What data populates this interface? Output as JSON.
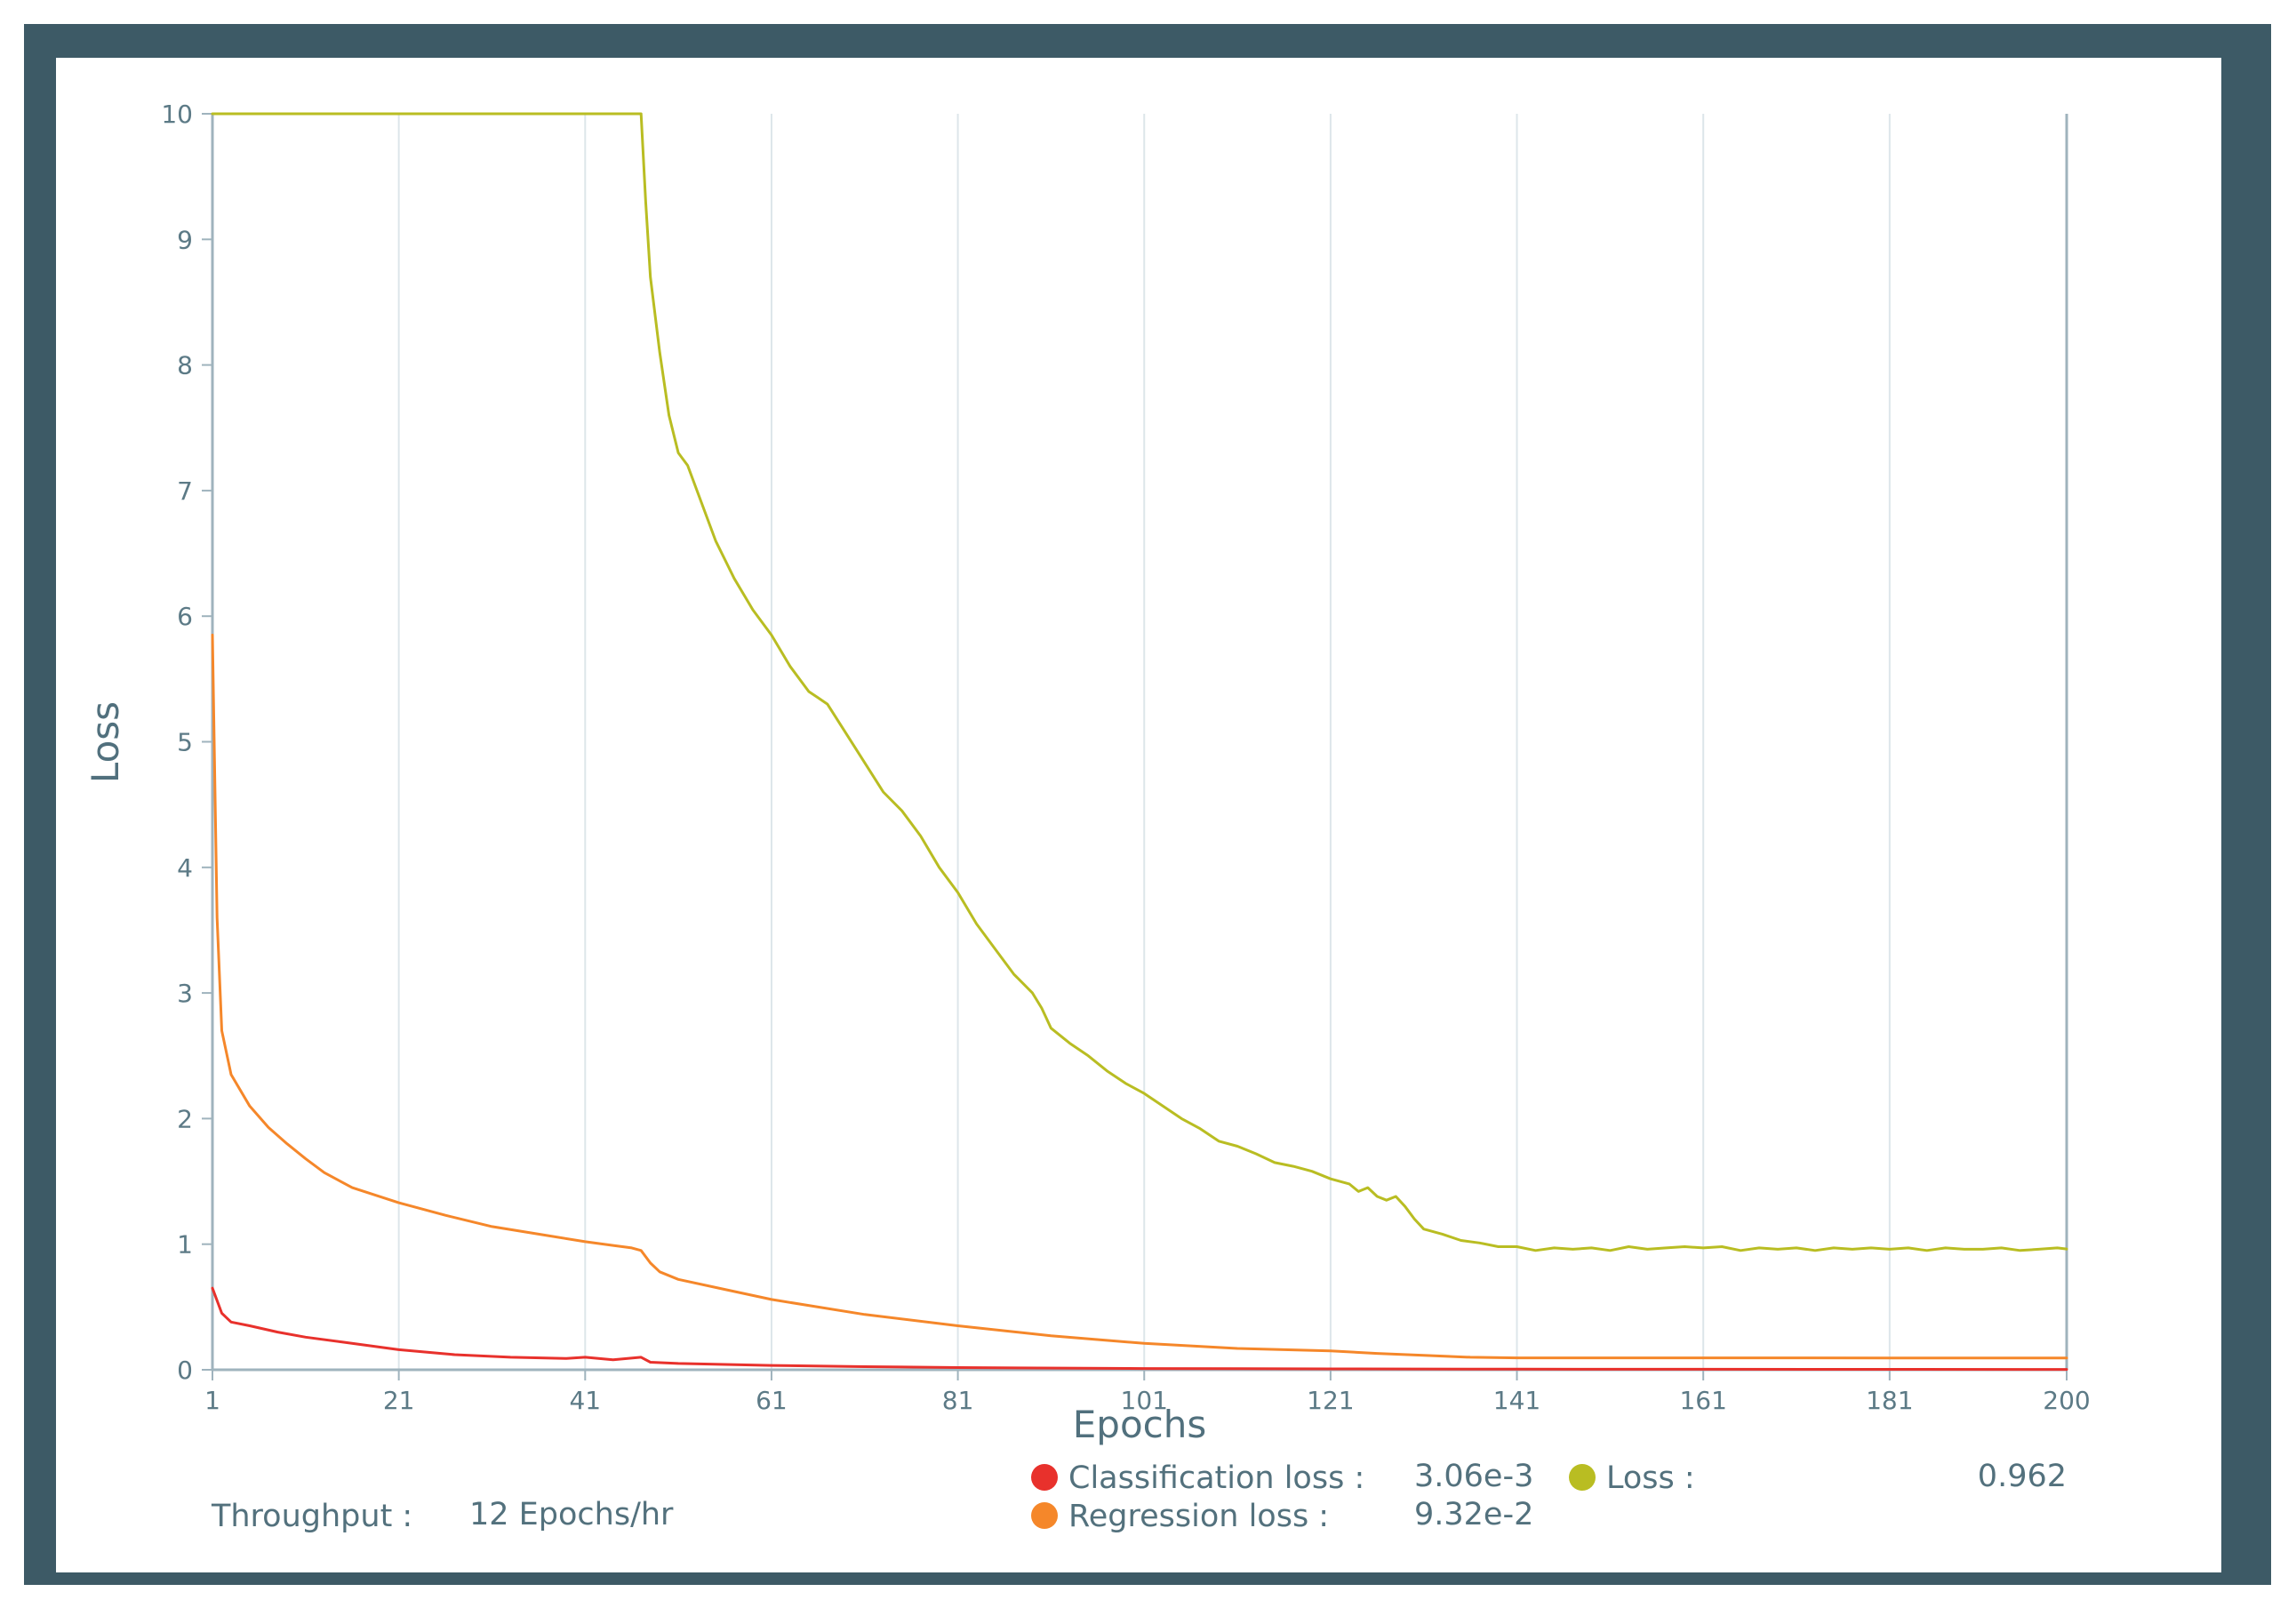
{
  "chart_data": {
    "type": "line",
    "xlabel": "Epochs",
    "ylabel": "Loss",
    "xlim": [
      1,
      200
    ],
    "ylim": [
      0,
      10
    ],
    "x_ticks": [
      "1",
      "21",
      "41",
      "61",
      "81",
      "101",
      "121",
      "141",
      "161",
      "181",
      "200"
    ],
    "y_ticks": [
      "0",
      "1",
      "2",
      "3",
      "4",
      "5",
      "6",
      "7",
      "8",
      "9",
      "10"
    ],
    "grid": "vertical",
    "colors": {
      "classification": "#e8312c",
      "regression": "#f5872a",
      "loss": "#b9bd22",
      "grid": "#dde6ea",
      "axis": "#9fb3bd"
    },
    "series": [
      {
        "name": "Classification loss",
        "key": "classification",
        "x": [
          1,
          2,
          3,
          5,
          8,
          11,
          15,
          21,
          27,
          33,
          39,
          41,
          44,
          47,
          48,
          51,
          61,
          71,
          81,
          101,
          121,
          141,
          161,
          181,
          200
        ],
        "y": [
          0.65,
          0.45,
          0.38,
          0.35,
          0.3,
          0.26,
          0.22,
          0.16,
          0.12,
          0.1,
          0.09,
          0.1,
          0.08,
          0.1,
          0.06,
          0.05,
          0.035,
          0.025,
          0.018,
          0.01,
          0.007,
          0.005,
          0.004,
          0.0035,
          0.00306
        ]
      },
      {
        "name": "Regression loss",
        "key": "regression",
        "x": [
          1,
          1.5,
          2,
          3,
          5,
          7,
          9,
          11,
          13,
          16,
          21,
          26,
          31,
          36,
          41,
          44,
          46,
          47,
          48,
          49,
          51,
          56,
          61,
          71,
          81,
          91,
          101,
          111,
          121,
          126,
          131,
          136,
          141,
          161,
          181,
          200
        ],
        "y": [
          5.85,
          3.6,
          2.7,
          2.35,
          2.1,
          1.93,
          1.8,
          1.68,
          1.57,
          1.45,
          1.33,
          1.23,
          1.14,
          1.08,
          1.02,
          0.99,
          0.97,
          0.95,
          0.85,
          0.78,
          0.72,
          0.64,
          0.56,
          0.44,
          0.35,
          0.27,
          0.21,
          0.17,
          0.15,
          0.13,
          0.115,
          0.1,
          0.095,
          0.095,
          0.094,
          0.0932
        ]
      },
      {
        "name": "Loss",
        "key": "loss",
        "x": [
          1,
          47,
          47.5,
          48,
          49,
          50,
          51,
          52,
          53,
          55,
          57,
          59,
          61,
          63,
          65,
          66,
          67,
          70,
          73,
          75,
          77,
          79,
          81,
          83,
          85,
          87,
          89,
          90,
          91,
          93,
          95,
          97,
          99,
          101,
          103,
          105,
          107,
          109,
          111,
          113,
          115,
          117,
          119,
          121,
          123,
          124,
          125,
          126,
          127,
          128,
          129,
          130,
          131,
          133,
          135,
          137,
          139,
          141,
          143,
          145,
          147,
          149,
          151,
          153,
          155,
          157,
          159,
          161,
          163,
          165,
          167,
          169,
          171,
          173,
          175,
          177,
          179,
          181,
          183,
          185,
          187,
          189,
          191,
          193,
          195,
          197,
          199,
          200
        ],
        "y": [
          10,
          10,
          9.3,
          8.7,
          8.1,
          7.6,
          7.3,
          7.2,
          7.0,
          6.6,
          6.3,
          6.05,
          5.85,
          5.6,
          5.4,
          5.35,
          5.3,
          4.95,
          4.6,
          4.45,
          4.25,
          4.0,
          3.8,
          3.55,
          3.35,
          3.15,
          3.0,
          2.88,
          2.72,
          2.6,
          2.5,
          2.38,
          2.28,
          2.2,
          2.1,
          2.0,
          1.92,
          1.82,
          1.78,
          1.72,
          1.65,
          1.62,
          1.58,
          1.52,
          1.48,
          1.42,
          1.45,
          1.38,
          1.35,
          1.38,
          1.3,
          1.2,
          1.12,
          1.08,
          1.03,
          1.01,
          0.98,
          0.98,
          0.95,
          0.97,
          0.96,
          0.97,
          0.95,
          0.98,
          0.96,
          0.97,
          0.98,
          0.97,
          0.98,
          0.95,
          0.97,
          0.96,
          0.97,
          0.95,
          0.97,
          0.96,
          0.97,
          0.96,
          0.97,
          0.95,
          0.97,
          0.96,
          0.96,
          0.97,
          0.95,
          0.96,
          0.97,
          0.962
        ]
      }
    ]
  },
  "legend": {
    "items": [
      {
        "label": "Classification loss :",
        "value": "3.06e-3",
        "color": "#e8312c"
      },
      {
        "label": "Regression loss :",
        "value": "9.32e-2",
        "color": "#f5872a"
      },
      {
        "label": "Loss :",
        "value": "0.962",
        "color": "#b9bd22"
      }
    ]
  },
  "throughput": {
    "label": "Throughput :",
    "value": "12 Epochs/hr"
  }
}
